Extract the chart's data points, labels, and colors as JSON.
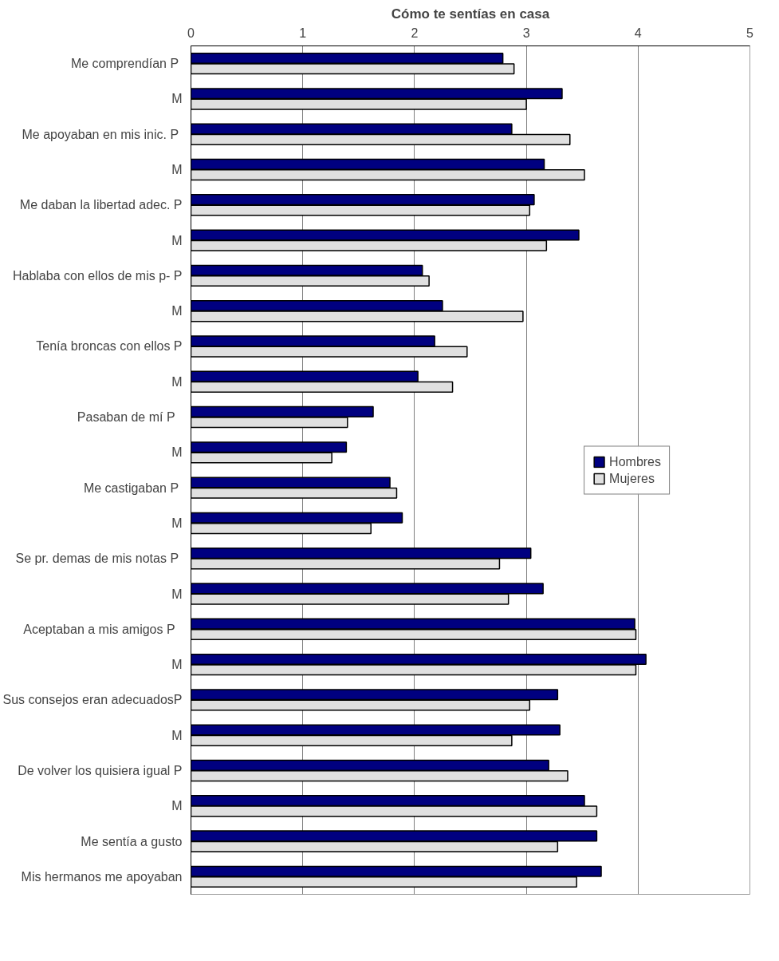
{
  "chart_data": {
    "type": "bar",
    "orientation": "horizontal",
    "title": "Cómo te sentías en casa",
    "categories": [
      "Me comprendían  P",
      "M",
      "Me apoyaban en mis inic.  P",
      "M",
      "Me daban la libertad adec. P",
      "M",
      "Hablaba con ellos de mis p- P",
      "M",
      "Tenía broncas con ellos P",
      "M",
      "Pasaban de mí   P",
      "M",
      "Me castigaban  P",
      "M",
      "Se pr. demas de mis notas  P",
      "M",
      "Aceptaban a mis amigos   P",
      "M",
      "Sus consejos eran adecuadosP",
      "M",
      "De volver los quisiera igual P",
      "M",
      "Me sentía a gusto",
      "Mis hermanos me apoyaban"
    ],
    "series": [
      {
        "name": "Hombres",
        "color": "#000080",
        "values": [
          2.79,
          3.32,
          2.87,
          3.16,
          3.07,
          3.47,
          2.07,
          2.25,
          2.18,
          2.03,
          1.63,
          1.39,
          1.78,
          1.89,
          3.04,
          3.15,
          3.97,
          4.07,
          3.28,
          3.3,
          3.2,
          3.52,
          3.63,
          3.67
        ]
      },
      {
        "name": "Mujeres",
        "color": "#e0e0e0",
        "values": [
          2.89,
          3.0,
          3.39,
          3.52,
          3.03,
          3.18,
          2.13,
          2.97,
          2.47,
          2.34,
          1.4,
          1.26,
          1.84,
          1.61,
          2.76,
          2.84,
          3.98,
          3.98,
          3.03,
          2.87,
          3.37,
          3.63,
          3.28,
          3.45
        ]
      }
    ],
    "xlim": [
      0,
      5
    ],
    "xticks": [
      0,
      1,
      2,
      3,
      4,
      5
    ],
    "grid": "x",
    "legend": "right"
  }
}
